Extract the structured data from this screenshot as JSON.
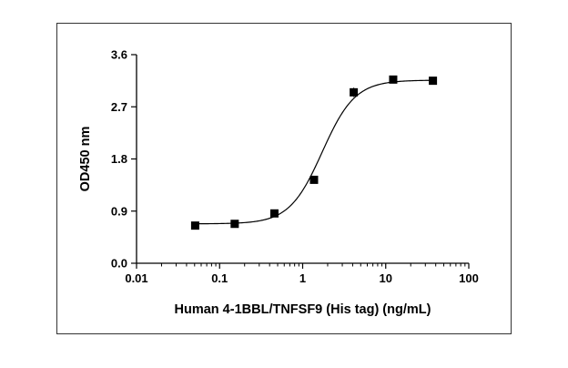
{
  "chart_data": {
    "type": "scatter",
    "title": "",
    "xlabel": "Human 4-1BBL/TNFSF9 (His tag) (ng/mL)",
    "ylabel": "OD450 nm",
    "x_scale": "log",
    "xlim": [
      0.01,
      100
    ],
    "ylim": [
      0,
      3.6
    ],
    "x_ticks": [
      0.01,
      0.1,
      1,
      10,
      100
    ],
    "x_tick_labels": [
      "0.01",
      "0.1",
      "1",
      "10",
      "100"
    ],
    "y_ticks": [
      0,
      0.9,
      1.8,
      2.7,
      3.6
    ],
    "y_tick_labels": [
      "0.0",
      "0.9",
      "1.8",
      "2.7",
      "3.6"
    ],
    "grid": false,
    "legend": "none",
    "series": [
      {
        "marker": "square",
        "color": "#000000",
        "x": [
          0.0508,
          0.152,
          0.457,
          1.37,
          4.12,
          12.3,
          37.0
        ],
        "y": [
          0.65,
          0.68,
          0.86,
          1.44,
          2.95,
          3.17,
          3.15
        ],
        "error": [
          0.02,
          0.02,
          0.06,
          0.04,
          0.08,
          0.02,
          0.02
        ]
      }
    ],
    "fit_curve": {
      "model": "4PL",
      "bottom": 0.68,
      "top": 3.16,
      "ec50": 1.72,
      "hill": 2.2,
      "color": "#000000"
    }
  }
}
